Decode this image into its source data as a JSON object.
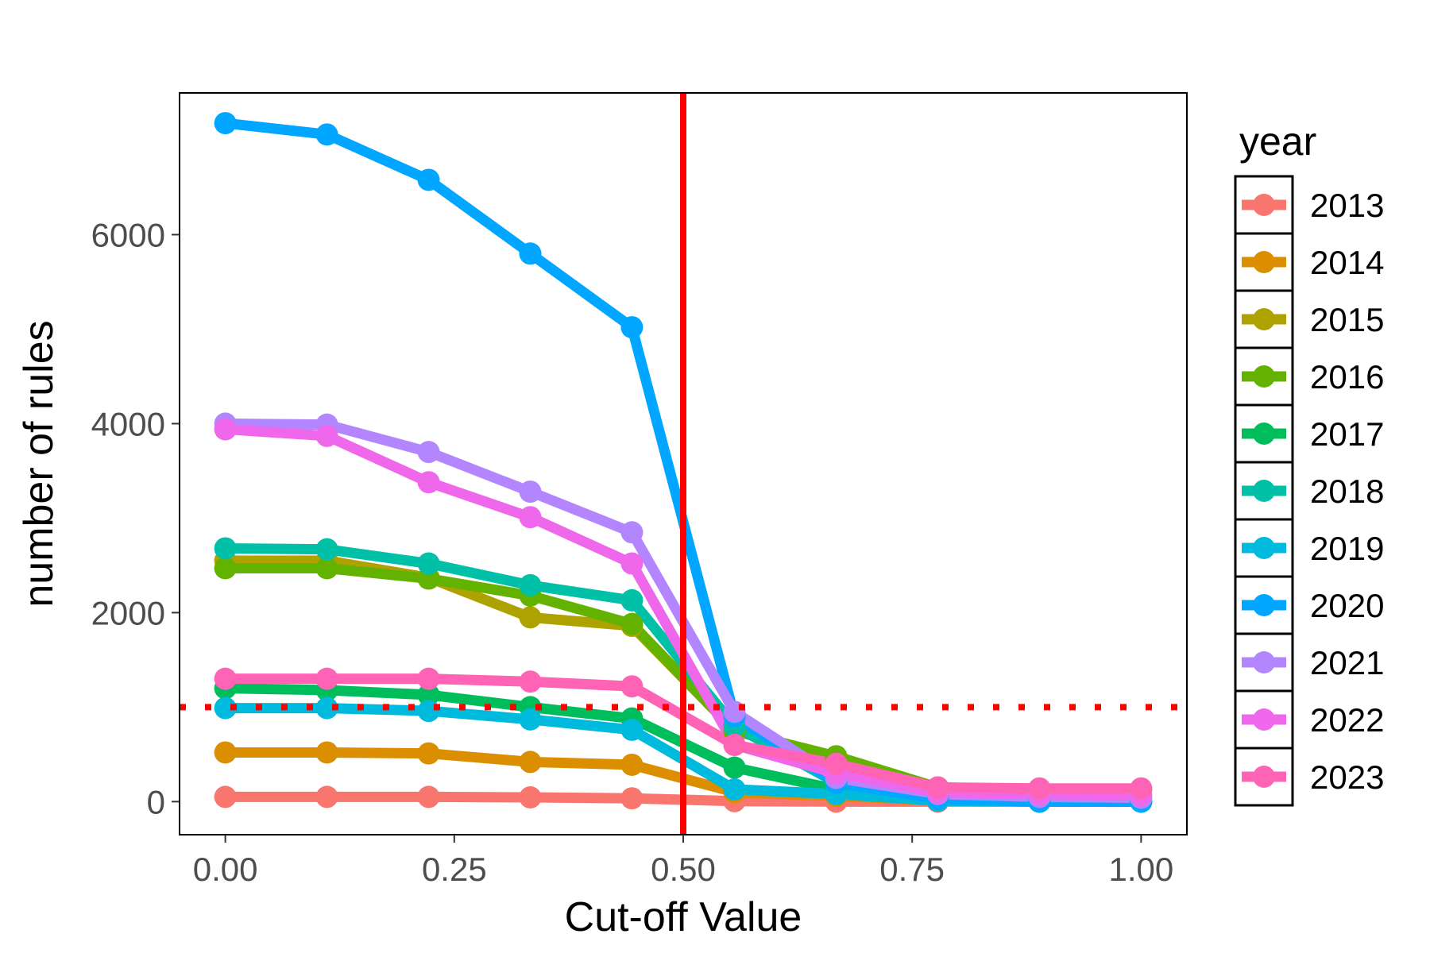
{
  "chart_data": {
    "type": "line",
    "title": "",
    "xlabel": "Cut-off Value",
    "ylabel": "number of rules",
    "xlim": [
      -0.05,
      1.05
    ],
    "ylim": [
      -350,
      7500
    ],
    "x_ticks": [
      0.0,
      0.25,
      0.5,
      0.75,
      1.0
    ],
    "x_tick_labels": [
      "0.00",
      "0.25",
      "0.50",
      "0.75",
      "1.00"
    ],
    "y_ticks": [
      0,
      2000,
      4000,
      6000
    ],
    "y_tick_labels": [
      "0",
      "2000",
      "4000",
      "6000"
    ],
    "grid": false,
    "legend_title": "year",
    "legend_position": "right",
    "x": [
      0.0,
      0.111,
      0.222,
      0.333,
      0.444,
      0.556,
      0.667,
      0.778,
      0.889,
      1.0
    ],
    "series": [
      {
        "name": "2013",
        "color": "#F8766D",
        "values": [
          50,
          50,
          50,
          45,
          35,
          5,
          0,
          0,
          0,
          0
        ]
      },
      {
        "name": "2014",
        "color": "#DB8E00",
        "values": [
          520,
          520,
          510,
          420,
          390,
          100,
          60,
          10,
          0,
          0
        ]
      },
      {
        "name": "2015",
        "color": "#AEA200",
        "values": [
          2550,
          2550,
          2370,
          1950,
          1860,
          750,
          450,
          150,
          130,
          130
        ]
      },
      {
        "name": "2016",
        "color": "#64B200",
        "values": [
          2470,
          2470,
          2360,
          2180,
          1880,
          750,
          480,
          150,
          130,
          130
        ]
      },
      {
        "name": "2017",
        "color": "#00BD5C",
        "values": [
          1200,
          1180,
          1130,
          1000,
          880,
          360,
          130,
          10,
          0,
          0
        ]
      },
      {
        "name": "2018",
        "color": "#00C1A7",
        "values": [
          2680,
          2670,
          2520,
          2290,
          2130,
          800,
          200,
          50,
          0,
          0
        ]
      },
      {
        "name": "2019",
        "color": "#00BADE",
        "values": [
          990,
          990,
          960,
          870,
          760,
          130,
          80,
          10,
          0,
          0
        ]
      },
      {
        "name": "2020",
        "color": "#00A6FF",
        "values": [
          7180,
          7060,
          6580,
          5800,
          5020,
          900,
          200,
          30,
          0,
          0
        ]
      },
      {
        "name": "2021",
        "color": "#B385FF",
        "values": [
          4000,
          3990,
          3700,
          3280,
          2850,
          950,
          250,
          80,
          50,
          40
        ]
      },
      {
        "name": "2022",
        "color": "#EF67EB",
        "values": [
          3940,
          3870,
          3380,
          3010,
          2520,
          600,
          300,
          100,
          80,
          70
        ]
      },
      {
        "name": "2023",
        "color": "#FF63B6",
        "values": [
          1300,
          1300,
          1300,
          1270,
          1220,
          600,
          400,
          150,
          140,
          140
        ]
      }
    ],
    "reference_lines": [
      {
        "orientation": "vertical",
        "value": 0.5,
        "color": "#FF0000",
        "style": "solid"
      },
      {
        "orientation": "horizontal",
        "value": 1000,
        "color": "#FF0000",
        "style": "dotted"
      }
    ]
  }
}
